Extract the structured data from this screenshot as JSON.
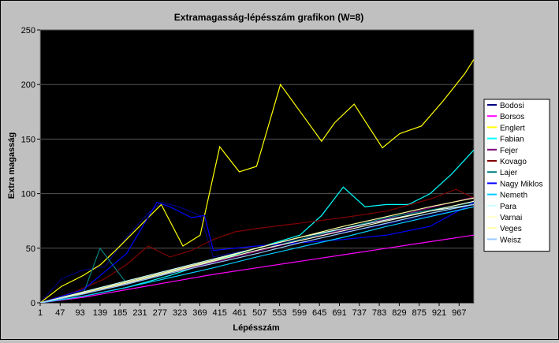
{
  "chart_data": {
    "type": "line",
    "title": "Extramagasság-lépésszám grafikon (W=8)",
    "xlabel": "Lépésszám",
    "ylabel": "Extra magasság",
    "ylim": [
      0,
      250
    ],
    "yticks": [
      0,
      50,
      100,
      150,
      200,
      250
    ],
    "xlim": [
      1,
      1001
    ],
    "xticks": [
      1,
      47,
      93,
      139,
      185,
      231,
      277,
      323,
      369,
      415,
      461,
      507,
      553,
      599,
      645,
      691,
      737,
      783,
      829,
      875,
      921,
      967
    ],
    "grid": "horizontal",
    "legend_position": "right",
    "plot_background": "#000000",
    "series": [
      {
        "name": "Bodosi",
        "color": "#000080",
        "x": [
          1,
          50,
          100,
          150,
          200,
          250,
          280,
          320,
          370,
          400,
          450,
          500,
          550,
          600,
          650,
          700,
          750,
          800,
          850,
          900,
          950,
          1001
        ],
        "y": [
          0,
          22,
          30,
          33,
          60,
          82,
          92,
          88,
          80,
          42,
          46,
          50,
          55,
          58,
          62,
          65,
          68,
          72,
          76,
          80,
          84,
          88
        ]
      },
      {
        "name": "Borsos",
        "color": "#ff00ff",
        "x": [
          1,
          100,
          200,
          300,
          400,
          500,
          600,
          700,
          800,
          900,
          1001
        ],
        "y": [
          0,
          5,
          12,
          19,
          26,
          32,
          38,
          44,
          50,
          56,
          62
        ]
      },
      {
        "name": "Englert",
        "color": "#ffff00",
        "x": [
          1,
          50,
          100,
          140,
          180,
          230,
          280,
          330,
          370,
          415,
          460,
          500,
          555,
          610,
          650,
          680,
          725,
          790,
          830,
          880,
          930,
          980,
          1001
        ],
        "y": [
          0,
          15,
          25,
          35,
          50,
          70,
          90,
          52,
          62,
          143,
          120,
          125,
          200,
          170,
          148,
          165,
          182,
          142,
          155,
          162,
          185,
          210,
          223
        ]
      },
      {
        "name": "Fabian",
        "color": "#00ffff",
        "x": [
          1,
          100,
          200,
          300,
          400,
          500,
          600,
          650,
          700,
          750,
          800,
          850,
          900,
          950,
          1001
        ],
        "y": [
          0,
          6,
          14,
          25,
          38,
          50,
          62,
          80,
          106,
          88,
          90,
          90,
          100,
          118,
          140
        ]
      },
      {
        "name": "Fejer",
        "color": "#800080",
        "x": [
          1,
          100,
          200,
          300,
          400,
          500,
          600,
          700,
          800,
          900,
          1001
        ],
        "y": [
          0,
          8,
          17,
          27,
          37,
          47,
          57,
          67,
          77,
          87,
          97
        ]
      },
      {
        "name": "Kovago",
        "color": "#800000",
        "x": [
          1,
          80,
          150,
          200,
          250,
          300,
          350,
          400,
          450,
          500,
          600,
          700,
          800,
          900,
          960,
          1001
        ],
        "y": [
          0,
          10,
          22,
          35,
          52,
          42,
          48,
          58,
          65,
          68,
          73,
          78,
          84,
          95,
          104,
          96
        ]
      },
      {
        "name": "Lajer",
        "color": "#008080",
        "x": [
          1,
          100,
          139,
          200,
          300,
          400,
          500,
          600,
          700,
          800,
          900,
          1001
        ],
        "y": [
          0,
          8,
          50,
          18,
          28,
          38,
          48,
          58,
          68,
          78,
          85,
          92
        ]
      },
      {
        "name": "Nagy Miklos",
        "color": "#0000ff",
        "x": [
          1,
          100,
          200,
          270,
          300,
          350,
          380,
          400,
          500,
          600,
          700,
          800,
          900,
          1001
        ],
        "y": [
          0,
          12,
          45,
          92,
          88,
          78,
          80,
          48,
          52,
          55,
          58,
          62,
          70,
          92
        ]
      },
      {
        "name": "Nemeth",
        "color": "#00ccff",
        "x": [
          1,
          100,
          200,
          300,
          400,
          500,
          600,
          700,
          800,
          900,
          1001
        ],
        "y": [
          0,
          6,
          14,
          23,
          32,
          42,
          51,
          60,
          70,
          79,
          88
        ]
      },
      {
        "name": "Para",
        "color": "#ccffff",
        "x": [
          1,
          100,
          200,
          300,
          400,
          500,
          600,
          700,
          800,
          900,
          1001
        ],
        "y": [
          0,
          10,
          20,
          30,
          40,
          50,
          60,
          68,
          76,
          84,
          90
        ]
      },
      {
        "name": "Varnai",
        "color": "#ffffcc",
        "x": [
          1,
          100,
          200,
          300,
          400,
          500,
          600,
          700,
          800,
          900,
          1001
        ],
        "y": [
          0,
          9,
          18,
          28,
          38,
          48,
          57,
          66,
          75,
          84,
          93
        ]
      },
      {
        "name": "Veges",
        "color": "#ffffa0",
        "x": [
          1,
          100,
          200,
          300,
          400,
          500,
          600,
          700,
          800,
          900,
          1001
        ],
        "y": [
          0,
          9,
          19,
          29,
          39,
          50,
          60,
          70,
          79,
          88,
          96
        ]
      },
      {
        "name": "Weisz",
        "color": "#99ccff",
        "x": [
          1,
          100,
          200,
          300,
          400,
          500,
          600,
          700,
          800,
          900,
          1001
        ],
        "y": [
          0,
          8,
          17,
          27,
          36,
          45,
          55,
          64,
          73,
          82,
          90
        ]
      }
    ]
  }
}
